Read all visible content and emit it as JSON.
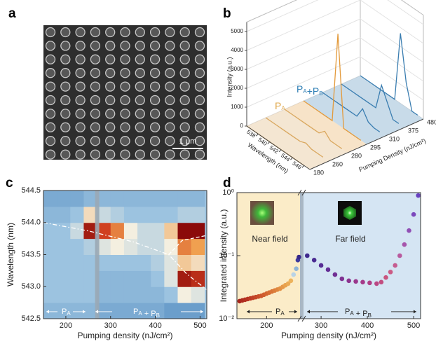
{
  "panel_labels": [
    "a",
    "b",
    "c",
    "d"
  ],
  "micrograph": {
    "scale_bar": "1 μm"
  },
  "chart_data": [
    {
      "type": "waterfall3d",
      "ylabel": "Intensity (a.u.)",
      "xlabel": "Wavelength (nm)",
      "zlabel": "Pumping Density (nJ/cm²)",
      "x": [
        536,
        537,
        538,
        539,
        540,
        541,
        542,
        543,
        544,
        545,
        546
      ],
      "xlim": [
        536,
        547
      ],
      "xticks": [
        538,
        540,
        542,
        544,
        546
      ],
      "ylim": [
        0,
        5500
      ],
      "yticks": [
        0,
        1000,
        2000,
        3000,
        4000,
        5000
      ],
      "zcategories": [
        180,
        260,
        280,
        295,
        310,
        375,
        480
      ],
      "series": [
        {
          "color": "#d9a75e",
          "values": [
            0,
            0,
            0,
            0,
            0,
            0,
            0,
            0,
            0,
            0,
            0
          ]
        },
        {
          "color": "#d9a75e",
          "values": [
            0,
            0,
            0,
            0,
            0,
            0,
            0,
            120,
            0,
            0,
            0
          ]
        },
        {
          "color": "#d9a75e",
          "values": [
            0,
            0,
            0,
            0,
            0,
            0,
            0,
            300,
            0,
            0,
            0
          ]
        },
        {
          "color": "#e39a3b",
          "values": [
            0,
            0,
            0,
            0,
            0,
            0,
            4800,
            0,
            0,
            0,
            0
          ]
        },
        {
          "color": "#3a7db0",
          "values": [
            0,
            0,
            0,
            0,
            0,
            0,
            0,
            600,
            100,
            0,
            0
          ]
        },
        {
          "color": "#3a7db0",
          "values": [
            0,
            0,
            0,
            0,
            0,
            0,
            0,
            1400,
            700,
            0,
            0
          ]
        },
        {
          "color": "#3a7db0",
          "values": [
            0,
            0,
            0,
            0,
            0,
            0,
            0,
            3700,
            1300,
            0,
            0
          ]
        }
      ],
      "annotations": [
        {
          "color": "#e0a84c",
          "parts": [
            {
              "text": "P",
              "sub": "A"
            }
          ]
        },
        {
          "color": "#2f7fb5",
          "parts": [
            {
              "text": "P",
              "sub": "A"
            },
            {
              "text": "+P",
              "sub": "B"
            }
          ]
        }
      ]
    },
    {
      "type": "heatmap",
      "xlabel": "Pumping density (nJ/cm²)",
      "ylabel": "Wavelength (nm)",
      "xlim": [
        150,
        515
      ],
      "xticks": [
        200,
        300,
        400,
        500
      ],
      "ylim": [
        542.5,
        544.5
      ],
      "yticks": [
        542.5,
        {
          "value": 543,
          "label": "543.0"
        },
        543.5,
        {
          "value": 544,
          "label": "544.0"
        },
        544.5
      ],
      "x": [
        165,
        195,
        225,
        255,
        285,
        315,
        345,
        375,
        405,
        435,
        465,
        495
      ],
      "y": [
        542.625,
        542.875,
        543.125,
        543.375,
        543.625,
        543.875,
        544.125,
        544.375
      ],
      "z": [
        [
          0.25,
          0.25,
          0.25,
          0.25,
          0.2,
          0.2,
          0.2,
          0.2,
          0.2,
          0.15,
          0.15,
          0.15
        ],
        [
          0.3,
          0.3,
          0.3,
          0.3,
          0.25,
          0.25,
          0.25,
          0.25,
          0.25,
          0.3,
          0.5,
          0.45
        ],
        [
          0.3,
          0.3,
          0.3,
          0.3,
          0.25,
          0.25,
          0.25,
          0.25,
          0.3,
          0.45,
          0.95,
          0.9
        ],
        [
          0.3,
          0.3,
          0.3,
          0.3,
          0.3,
          0.3,
          0.3,
          0.3,
          0.35,
          0.45,
          0.6,
          0.55
        ],
        [
          0.3,
          0.3,
          0.3,
          0.35,
          0.45,
          0.5,
          0.45,
          0.4,
          0.4,
          0.5,
          0.75,
          0.7
        ],
        [
          0.3,
          0.3,
          0.4,
          0.95,
          0.85,
          0.75,
          0.5,
          0.4,
          0.4,
          0.6,
          1.0,
          1.0
        ],
        [
          0.25,
          0.25,
          0.3,
          0.55,
          0.4,
          0.35,
          0.3,
          0.3,
          0.3,
          0.3,
          0.35,
          0.35
        ],
        [
          0.2,
          0.2,
          0.2,
          0.25,
          0.25,
          0.25,
          0.25,
          0.25,
          0.25,
          0.25,
          0.25,
          0.25
        ]
      ],
      "threshold_x": 270,
      "guides": [
        {
          "x": [
            150,
            250,
            350,
            430,
            470,
            515
          ],
          "y": [
            544.0,
            543.87,
            543.7,
            543.5,
            543.2,
            542.95
          ]
        },
        {
          "x": [
            430,
            460,
            515
          ],
          "y": [
            543.5,
            543.72,
            543.8
          ]
        }
      ],
      "annotations": [
        {
          "parts": [
            {
              "text": "P",
              "sub": "A"
            }
          ]
        },
        {
          "parts": [
            {
              "text": "P",
              "sub": "A"
            },
            {
              "text": " + P",
              "sub": "B"
            }
          ]
        }
      ]
    },
    {
      "type": "scatter",
      "log_y": true,
      "xlabel": "Pumping density (nJ/cm²)",
      "ylabel": "Integrated intensity (a.u.)",
      "xlim": [
        145,
        515
      ],
      "xticks": [
        200,
        300,
        400,
        500
      ],
      "axis_break": 262,
      "ylim": [
        0.01,
        1
      ],
      "yticks": [
        {
          "value": 0.01,
          "label": "10⁻²"
        },
        {
          "value": 0.1,
          "label": "10⁻¹"
        },
        {
          "value": 1,
          "label": "10⁰"
        }
      ],
      "x": [
        150,
        155,
        160,
        165,
        170,
        175,
        180,
        185,
        190,
        195,
        200,
        205,
        210,
        215,
        220,
        225,
        230,
        235,
        240,
        245,
        250,
        255,
        258,
        260,
        270,
        285,
        300,
        315,
        330,
        345,
        360,
        375,
        390,
        405,
        420,
        430,
        440,
        450,
        460,
        470,
        480,
        490,
        500,
        510
      ],
      "values": [
        0.019,
        0.0195,
        0.02,
        0.0205,
        0.021,
        0.0215,
        0.022,
        0.0225,
        0.023,
        0.024,
        0.025,
        0.026,
        0.027,
        0.028,
        0.029,
        0.03,
        0.032,
        0.034,
        0.036,
        0.04,
        0.05,
        0.062,
        0.085,
        0.095,
        0.1,
        0.085,
        0.07,
        0.06,
        0.05,
        0.043,
        0.04,
        0.039,
        0.038,
        0.037,
        0.036,
        0.038,
        0.045,
        0.055,
        0.07,
        0.1,
        0.15,
        0.25,
        0.45,
        0.9
      ],
      "colors": [
        "#a8261c",
        "#ad2a1e",
        "#b22f20",
        "#b73422",
        "#bb3a24",
        "#c04026",
        "#c44728",
        "#c84e2a",
        "#cc552c",
        "#d05c2e",
        "#d36430",
        "#d66c33",
        "#d97436",
        "#dc7d3a",
        "#df863e",
        "#e28f43",
        "#e59848",
        "#e8a14e",
        "#eaaa55",
        "#edb35c",
        "#b9d3e6",
        "#8fb4d6",
        "#3d3a9e",
        "#36288a",
        "#3f2a8e",
        "#4a2b92",
        "#562c94",
        "#642d95",
        "#712f94",
        "#7f3192",
        "#8c338f",
        "#99368c",
        "#a53a89",
        "#b03f86",
        "#ba4683",
        "#c24d80",
        "#c9557f",
        "#cb5a84",
        "#c55c90",
        "#b85a9e",
        "#a655ab",
        "#914fb5",
        "#7b48bc",
        "#6841c0"
      ],
      "background_colors": [
        "#fbecc8",
        "#d5e5f3"
      ],
      "insets": [
        {
          "label": "Near field"
        },
        {
          "label": "Far field"
        }
      ],
      "annotations": [
        {
          "parts": [
            {
              "text": "P",
              "sub": "A"
            }
          ]
        },
        {
          "parts": [
            {
              "text": "P",
              "sub": "A"
            },
            {
              "text": " + P",
              "sub": "B"
            }
          ]
        }
      ]
    }
  ]
}
